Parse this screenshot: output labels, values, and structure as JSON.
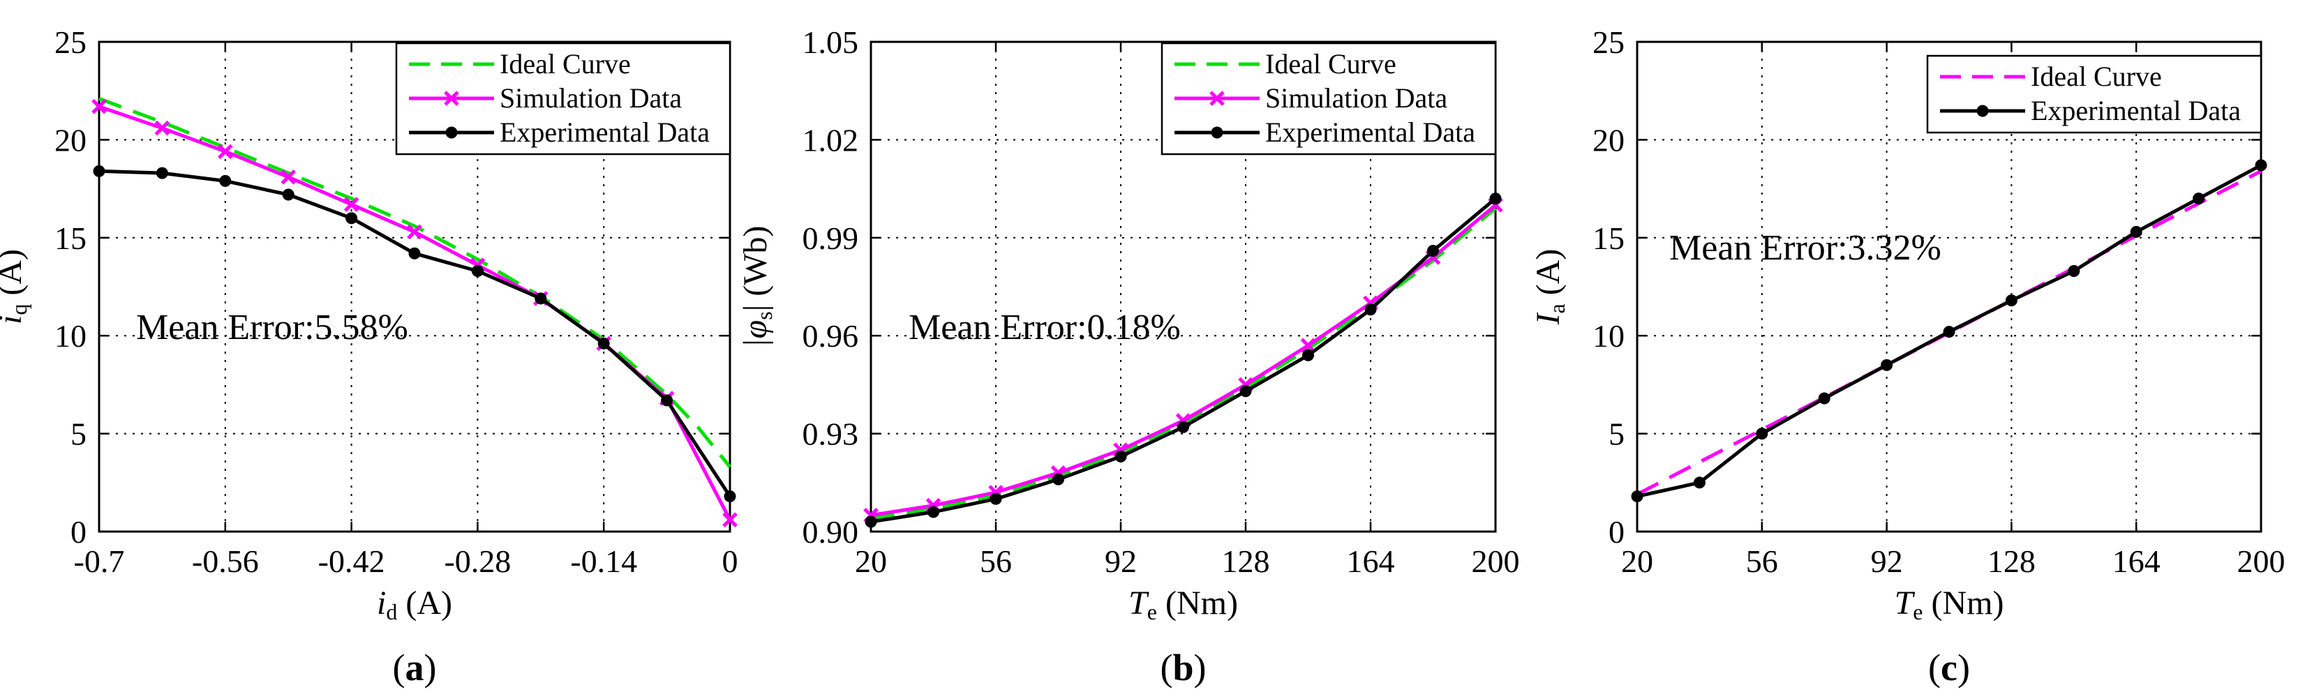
{
  "chart_data": [
    {
      "type": "line",
      "panel_label": "a",
      "xlabel_main": "i",
      "xlabel_sub": "d",
      "xlabel_unit": " (A)",
      "ylabel_main": "i",
      "ylabel_sub": "q",
      "ylabel_unit": " (A)",
      "xlim": [
        -0.7,
        0
      ],
      "ylim": [
        0,
        25
      ],
      "xticks": [
        -0.7,
        -0.56,
        -0.42,
        -0.28,
        -0.14,
        0
      ],
      "xtick_labels": [
        "-0.7",
        "-0.56",
        "-0.42",
        "-0.28",
        "-0.14",
        "0"
      ],
      "yticks": [
        0,
        5,
        10,
        15,
        20,
        25
      ],
      "ytick_labels": [
        "0",
        "5",
        "10",
        "15",
        "20",
        "25"
      ],
      "annotation": "Mean Error:5.58%",
      "series": [
        {
          "name": "Ideal Curve",
          "color": "#00e000",
          "style": "dashed",
          "x": [
            -0.7,
            -0.63,
            -0.56,
            -0.49,
            -0.42,
            -0.35,
            -0.28,
            -0.21,
            -0.14,
            -0.07,
            -0.035,
            0
          ],
          "y": [
            22.1,
            20.9,
            19.6,
            18.3,
            17.0,
            15.6,
            13.9,
            12.0,
            9.8,
            7.0,
            5.3,
            3.3
          ]
        },
        {
          "name": "Simulation Data",
          "color": "#ff00ff",
          "style": "solid",
          "marker": "x",
          "x": [
            -0.7,
            -0.63,
            -0.56,
            -0.49,
            -0.42,
            -0.35,
            -0.28,
            -0.21,
            -0.14,
            -0.07,
            0
          ],
          "y": [
            21.7,
            20.6,
            19.4,
            18.1,
            16.7,
            15.3,
            13.6,
            11.9,
            9.6,
            6.8,
            0.6
          ]
        },
        {
          "name": "Experimental Data",
          "color": "#000000",
          "style": "solid",
          "marker": "dot",
          "x": [
            -0.7,
            -0.63,
            -0.56,
            -0.49,
            -0.42,
            -0.35,
            -0.28,
            -0.21,
            -0.14,
            -0.07,
            0
          ],
          "y": [
            18.4,
            18.3,
            17.9,
            17.2,
            16.0,
            14.2,
            13.3,
            11.9,
            9.6,
            6.7,
            1.8
          ]
        }
      ]
    },
    {
      "type": "line",
      "panel_label": "b",
      "xlabel_main": "T",
      "xlabel_sub": "e",
      "xlabel_unit": " (Nm)",
      "ylabel_main": "|φ",
      "ylabel_sub": "s",
      "ylabel_unit": "| (Wb)",
      "xlim": [
        20,
        200
      ],
      "ylim": [
        0.9,
        1.05
      ],
      "xticks": [
        20,
        56,
        92,
        128,
        164,
        200
      ],
      "xtick_labels": [
        "20",
        "56",
        "92",
        "128",
        "164",
        "200"
      ],
      "yticks": [
        0.9,
        0.93,
        0.96,
        0.99,
        1.02,
        1.05
      ],
      "ytick_labels": [
        "0.90",
        "0.93",
        "0.96",
        "0.99",
        "1.02",
        "1.05"
      ],
      "annotation": "Mean Error:0.18%",
      "series": [
        {
          "name": "Ideal Curve",
          "color": "#00e000",
          "style": "dashed",
          "x": [
            20,
            38,
            56,
            74,
            92,
            110,
            128,
            146,
            164,
            182,
            200
          ],
          "y": [
            0.904,
            0.907,
            0.911,
            0.917,
            0.924,
            0.933,
            0.944,
            0.956,
            0.969,
            0.983,
            0.999
          ]
        },
        {
          "name": "Simulation Data",
          "color": "#ff00ff",
          "style": "solid",
          "marker": "x",
          "x": [
            20,
            38,
            56,
            74,
            92,
            110,
            128,
            146,
            164,
            182,
            200
          ],
          "y": [
            0.905,
            0.908,
            0.912,
            0.918,
            0.925,
            0.934,
            0.945,
            0.957,
            0.97,
            0.984,
            1.0
          ]
        },
        {
          "name": "Experimental Data",
          "color": "#000000",
          "style": "solid",
          "marker": "dot",
          "x": [
            20,
            38,
            56,
            74,
            92,
            110,
            128,
            146,
            164,
            182,
            200
          ],
          "y": [
            0.903,
            0.906,
            0.91,
            0.916,
            0.923,
            0.932,
            0.943,
            0.954,
            0.968,
            0.986,
            1.002
          ]
        }
      ]
    },
    {
      "type": "line",
      "panel_label": "c",
      "xlabel_main": "T",
      "xlabel_sub": "e",
      "xlabel_unit": " (Nm)",
      "ylabel_main": "I",
      "ylabel_sub": "a",
      "ylabel_unit": " (A)",
      "xlim": [
        20,
        200
      ],
      "ylim": [
        0,
        25
      ],
      "xticks": [
        20,
        56,
        92,
        128,
        164,
        200
      ],
      "xtick_labels": [
        "20",
        "56",
        "92",
        "128",
        "164",
        "200"
      ],
      "yticks": [
        0,
        5,
        10,
        15,
        20,
        25
      ],
      "ytick_labels": [
        "0",
        "5",
        "10",
        "15",
        "20",
        "25"
      ],
      "annotation": "Mean Error:3.32%",
      "series": [
        {
          "name": "Ideal Curve",
          "color": "#ff00ff",
          "style": "dashed",
          "x": [
            20,
            200
          ],
          "y": [
            1.9,
            18.4
          ]
        },
        {
          "name": "Experimental Data",
          "color": "#000000",
          "style": "solid",
          "marker": "dot",
          "x": [
            20,
            38,
            56,
            74,
            92,
            110,
            128,
            146,
            164,
            182,
            200
          ],
          "y": [
            1.8,
            2.5,
            5.0,
            6.8,
            8.5,
            10.2,
            11.8,
            13.3,
            15.3,
            17.0,
            18.7
          ]
        }
      ]
    }
  ]
}
